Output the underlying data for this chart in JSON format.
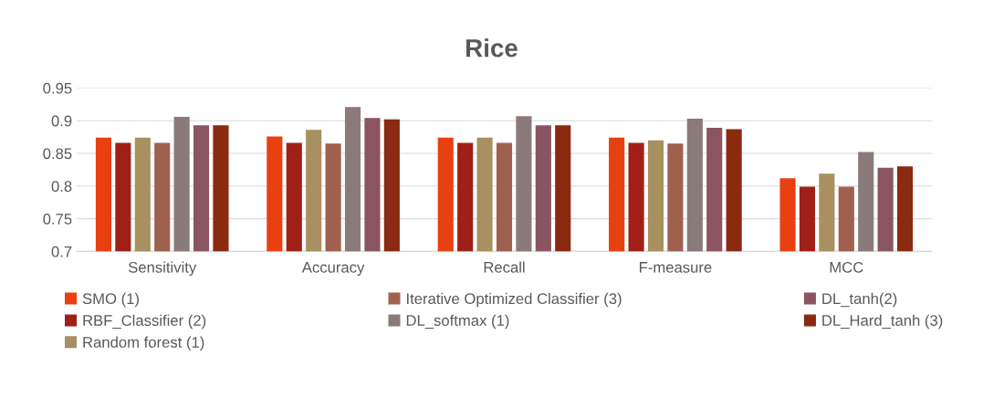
{
  "chart_data": {
    "type": "bar",
    "title": "Rice",
    "categories": [
      "Sensitivity",
      "Accuracy",
      "Recall",
      "F-measure",
      "MCC"
    ],
    "series": [
      {
        "name": "SMO (1)",
        "color": "#e84010",
        "values": [
          0.874,
          0.876,
          0.874,
          0.874,
          0.812
        ]
      },
      {
        "name": "RBF_Classifier (2)",
        "color": "#a02018",
        "values": [
          0.866,
          0.866,
          0.866,
          0.866,
          0.799
        ]
      },
      {
        "name": "Random forest (1)",
        "color": "#a89060",
        "values": [
          0.874,
          0.886,
          0.874,
          0.87,
          0.819
        ]
      },
      {
        "name": "Iterative Optimized Classifier (3)",
        "color": "#a06050",
        "values": [
          0.866,
          0.865,
          0.866,
          0.865,
          0.799
        ]
      },
      {
        "name": "DL_softmax (1)",
        "color": "#8a7a7a",
        "values": [
          0.906,
          0.921,
          0.907,
          0.903,
          0.852
        ]
      },
      {
        "name": "DL_tanh(2)",
        "color": "#8a5560",
        "values": [
          0.893,
          0.904,
          0.893,
          0.889,
          0.828
        ]
      },
      {
        "name": "DL_Hard_tanh (3)",
        "color": "#8a2a10",
        "values": [
          0.893,
          0.902,
          0.893,
          0.887,
          0.83
        ]
      }
    ],
    "ylim": [
      0.7,
      0.95
    ],
    "yticks": [
      0.7,
      0.75,
      0.8,
      0.85,
      0.9,
      0.95
    ],
    "grid": "y",
    "legend": "bottom"
  }
}
